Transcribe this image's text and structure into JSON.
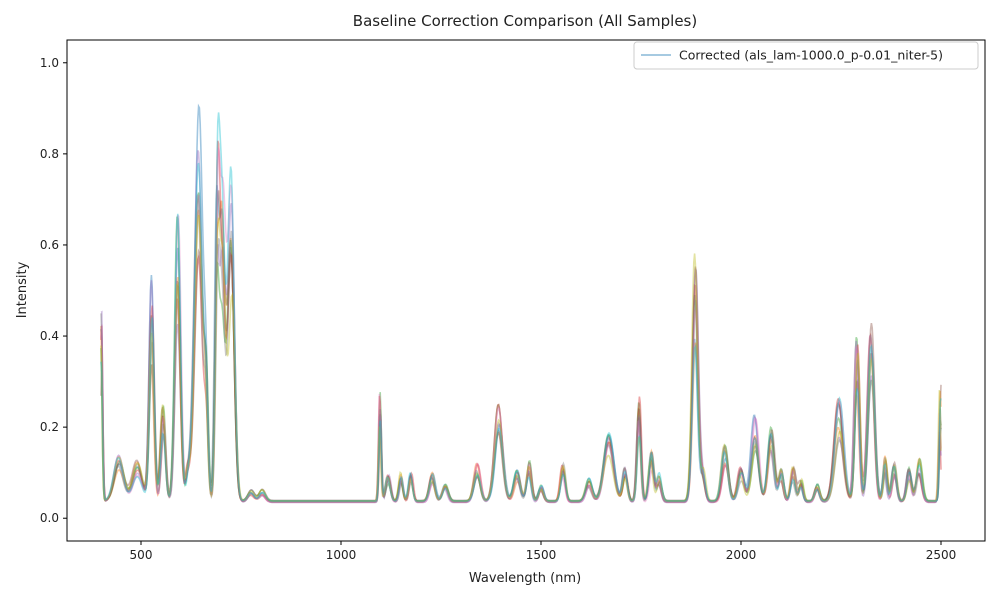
{
  "chart_data": {
    "type": "line",
    "title": "Baseline Correction Comparison (All Samples)",
    "xlabel": "Wavelength (nm)",
    "ylabel": "Intensity",
    "xlim": [
      315,
      2610
    ],
    "ylim": [
      -0.05,
      1.05
    ],
    "xticks": [
      500,
      1000,
      1500,
      2000,
      2500
    ],
    "yticks": [
      0.0,
      0.2,
      0.4,
      0.6,
      0.8,
      1.0
    ],
    "grid": false,
    "legend": {
      "placement": "top-right",
      "entries": [
        "Corrected (als_lam-1000.0_p-0.01_niter-5)"
      ]
    },
    "x_range": [
      400,
      2500
    ],
    "sample_count": 10,
    "base_peaks": [
      [
        400,
        0.36,
        3
      ],
      [
        445,
        0.09,
        12
      ],
      [
        490,
        0.07,
        12
      ],
      [
        527,
        0.39,
        6
      ],
      [
        555,
        0.17,
        6
      ],
      [
        592,
        0.51,
        7
      ],
      [
        618,
        0.06,
        6
      ],
      [
        643,
        0.72,
        10
      ],
      [
        663,
        0.18,
        5
      ],
      [
        690,
        0.45,
        5
      ],
      [
        703,
        0.55,
        8
      ],
      [
        726,
        0.6,
        8
      ],
      [
        775,
        0.02,
        8
      ],
      [
        803,
        0.02,
        8
      ],
      [
        1098,
        0.19,
        3
      ],
      [
        1118,
        0.05,
        6
      ],
      [
        1150,
        0.05,
        5
      ],
      [
        1175,
        0.05,
        5
      ],
      [
        1228,
        0.05,
        7
      ],
      [
        1260,
        0.03,
        7
      ],
      [
        1340,
        0.07,
        8
      ],
      [
        1395,
        0.17,
        10
      ],
      [
        1440,
        0.06,
        8
      ],
      [
        1470,
        0.07,
        6
      ],
      [
        1500,
        0.03,
        6
      ],
      [
        1555,
        0.07,
        6
      ],
      [
        1620,
        0.04,
        8
      ],
      [
        1670,
        0.12,
        12
      ],
      [
        1710,
        0.06,
        6
      ],
      [
        1745,
        0.19,
        5
      ],
      [
        1775,
        0.09,
        6
      ],
      [
        1795,
        0.05,
        6
      ],
      [
        1885,
        0.44,
        7
      ],
      [
        1905,
        0.06,
        6
      ],
      [
        1960,
        0.1,
        8
      ],
      [
        2000,
        0.06,
        8
      ],
      [
        2035,
        0.15,
        9
      ],
      [
        2075,
        0.15,
        8
      ],
      [
        2100,
        0.06,
        6
      ],
      [
        2130,
        0.06,
        6
      ],
      [
        2150,
        0.04,
        5
      ],
      [
        2190,
        0.03,
        6
      ],
      [
        2245,
        0.18,
        11
      ],
      [
        2290,
        0.3,
        6
      ],
      [
        2325,
        0.32,
        8
      ],
      [
        2360,
        0.08,
        5
      ],
      [
        2383,
        0.07,
        6
      ],
      [
        2420,
        0.06,
        6
      ],
      [
        2445,
        0.08,
        7
      ],
      [
        2498,
        0.21,
        3
      ]
    ],
    "series_colors": [
      "#1f77b4",
      "#ff7f0e",
      "#2ca02c",
      "#d62728",
      "#9467bd",
      "#8c564b",
      "#e377c2",
      "#7f7f7f",
      "#bcbd22",
      "#17becf"
    ]
  }
}
